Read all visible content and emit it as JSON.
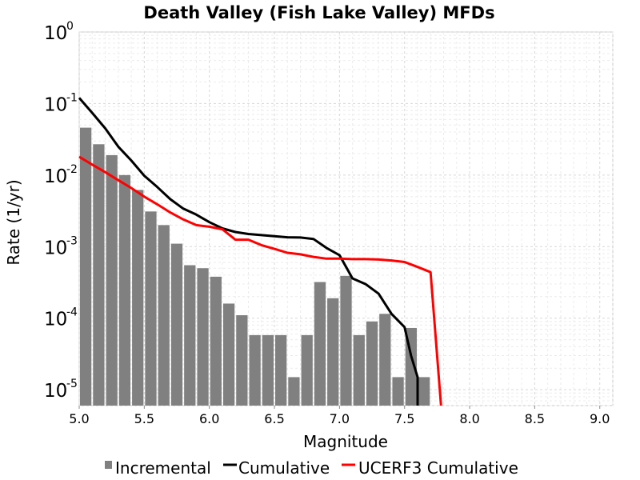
{
  "chart_data": {
    "type": "bar",
    "title": "Death Valley (Fish Lake Valley) MFDs",
    "xlabel": "Magnitude",
    "ylabel": "Rate (1/yr)",
    "xlim": [
      5.0,
      9.1
    ],
    "ylim": [
      6e-06,
      1.0
    ],
    "yscale": "log",
    "grid": true,
    "legend_position": "bottom",
    "x_ticks": [
      "5.0",
      "5.5",
      "6.0",
      "6.5",
      "7.0",
      "7.5",
      "8.0",
      "8.5",
      "9.0"
    ],
    "y_ticks": [
      {
        "base": "10",
        "exp": "0",
        "value": 1
      },
      {
        "base": "10",
        "exp": "-1",
        "value": 0.1
      },
      {
        "base": "10",
        "exp": "-2",
        "value": 0.01
      },
      {
        "base": "10",
        "exp": "-3",
        "value": 0.001
      },
      {
        "base": "10",
        "exp": "-4",
        "value": 0.0001
      },
      {
        "base": "10",
        "exp": "-5",
        "value": 1e-05
      }
    ],
    "series": [
      {
        "name": "Incremental",
        "kind": "bar",
        "color": "#808080",
        "bin_width": 0.1,
        "x": [
          5.05,
          5.15,
          5.25,
          5.35,
          5.45,
          5.55,
          5.65,
          5.75,
          5.85,
          5.95,
          6.05,
          6.15,
          6.25,
          6.35,
          6.45,
          6.55,
          6.65,
          6.75,
          6.85,
          6.95,
          7.05,
          7.15,
          7.25,
          7.35,
          7.45,
          7.55,
          7.65
        ],
        "y": [
          0.046,
          0.027,
          0.019,
          0.01,
          0.0062,
          0.0031,
          0.002,
          0.0011,
          0.00055,
          0.0005,
          0.00038,
          0.00016,
          0.00011,
          5.8e-05,
          5.8e-05,
          5.8e-05,
          1.5e-05,
          5.8e-05,
          0.00032,
          0.00019,
          0.00039,
          5.8e-05,
          9e-05,
          0.000115,
          1.5e-05,
          7.3e-05,
          1.5e-05
        ]
      },
      {
        "name": "Cumulative",
        "kind": "line",
        "color": "#000000",
        "x": [
          5.0,
          5.1,
          5.2,
          5.3,
          5.4,
          5.5,
          5.6,
          5.7,
          5.8,
          5.9,
          6.0,
          6.1,
          6.2,
          6.3,
          6.4,
          6.5,
          6.6,
          6.7,
          6.8,
          6.9,
          7.0,
          7.1,
          7.2,
          7.3,
          7.4,
          7.5,
          7.55,
          7.6,
          7.6
        ],
        "y": [
          0.12,
          0.074,
          0.045,
          0.025,
          0.016,
          0.0098,
          0.0068,
          0.0046,
          0.0034,
          0.0028,
          0.0022,
          0.0018,
          0.0016,
          0.0015,
          0.00145,
          0.0014,
          0.00135,
          0.00134,
          0.00128,
          0.00096,
          0.00076,
          0.00036,
          0.0003,
          0.00022,
          0.000115,
          7.5e-05,
          3e-05,
          1.5e-05,
          6e-06
        ]
      },
      {
        "name": "UCERF3 Cumulative",
        "kind": "line",
        "color": "#ff0000",
        "x": [
          5.0,
          5.1,
          5.2,
          5.3,
          5.4,
          5.5,
          5.6,
          5.7,
          5.8,
          5.9,
          6.0,
          6.1,
          6.2,
          6.3,
          6.4,
          6.5,
          6.6,
          6.7,
          6.8,
          6.9,
          7.0,
          7.1,
          7.2,
          7.3,
          7.4,
          7.5,
          7.6,
          7.7,
          7.78
        ],
        "y": [
          0.018,
          0.014,
          0.011,
          0.0085,
          0.0066,
          0.005,
          0.0039,
          0.003,
          0.0024,
          0.002,
          0.0019,
          0.00175,
          0.00125,
          0.00125,
          0.00105,
          0.00093,
          0.00082,
          0.00078,
          0.00072,
          0.00068,
          0.00068,
          0.00067,
          0.00067,
          0.00066,
          0.00064,
          0.00061,
          0.00052,
          0.00044,
          6e-06
        ]
      }
    ]
  }
}
